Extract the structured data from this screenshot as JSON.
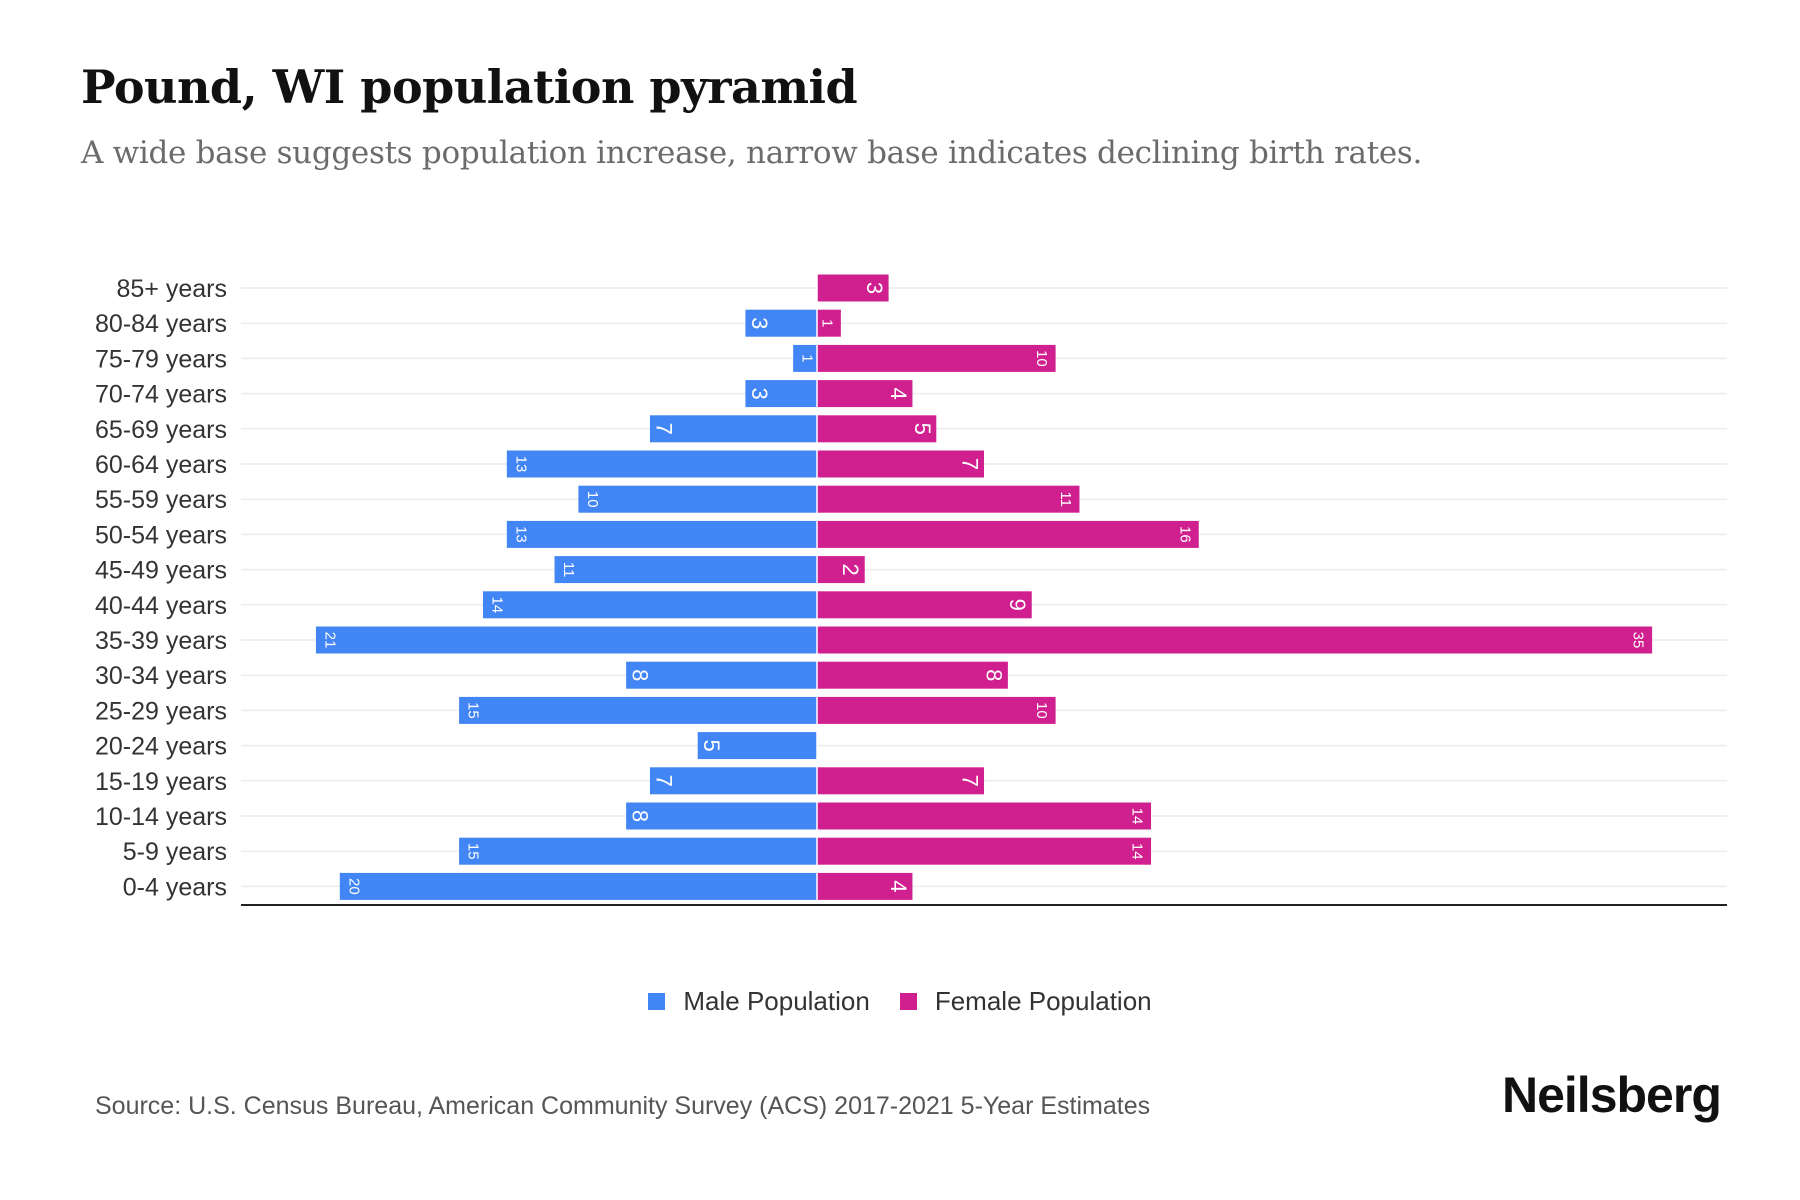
{
  "title": "Pound, WI population pyramid",
  "subtitle": "A wide base suggests population increase, narrow base indicates declining birth rates.",
  "source": "Source: U.S. Census Bureau, American Community Survey (ACS) 2017-2021 5-Year Estimates",
  "logo": "Neilsberg",
  "colors": {
    "male": "#4285f4",
    "female": "#d01f8e"
  },
  "chart_data": {
    "type": "bar",
    "orientation": "horizontal-pyramid",
    "title": "Pound, WI population pyramid",
    "categories": [
      "85+ years",
      "80-84 years",
      "75-79 years",
      "70-74 years",
      "65-69 years",
      "60-64 years",
      "55-59 years",
      "50-54 years",
      "45-49 years",
      "40-44 years",
      "35-39 years",
      "30-34 years",
      "25-29 years",
      "20-24 years",
      "15-19 years",
      "10-14 years",
      "5-9 years",
      "0-4 years"
    ],
    "series": [
      {
        "name": "Male Population",
        "values": [
          0,
          3,
          1,
          3,
          7,
          13,
          10,
          13,
          11,
          14,
          21,
          8,
          15,
          5,
          7,
          8,
          15,
          20
        ]
      },
      {
        "name": "Female Population",
        "values": [
          3,
          1,
          10,
          4,
          5,
          7,
          11,
          16,
          2,
          9,
          35,
          8,
          10,
          0,
          7,
          14,
          14,
          4
        ]
      }
    ],
    "legend": "bottom-center",
    "grid": true
  }
}
